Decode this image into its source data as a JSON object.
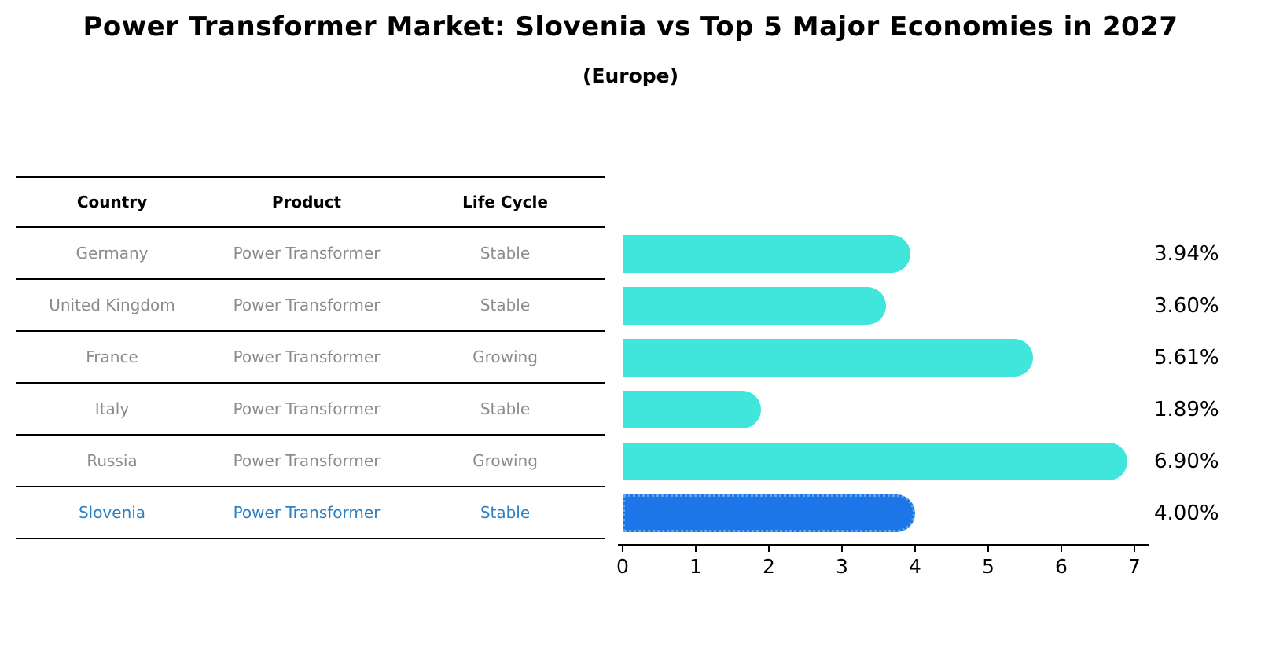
{
  "title": "Power Transformer Market: Slovenia vs Top 5 Major Economies in 2027",
  "subtitle": "(Europe)",
  "table": {
    "headers": {
      "country": "Country",
      "product": "Product",
      "life_cycle": "Life Cycle"
    },
    "rows": [
      {
        "country": "Germany",
        "product": "Power Transformer",
        "life_cycle": "Stable",
        "highlight": false
      },
      {
        "country": "United Kingdom",
        "product": "Power Transformer",
        "life_cycle": "Stable",
        "highlight": false
      },
      {
        "country": "France",
        "product": "Power Transformer",
        "life_cycle": "Growing",
        "highlight": false
      },
      {
        "country": "Italy",
        "product": "Power Transformer",
        "life_cycle": "Stable",
        "highlight": false
      },
      {
        "country": "Russia",
        "product": "Power Transformer",
        "life_cycle": "Growing",
        "highlight": false
      },
      {
        "country": "Slovenia",
        "product": "Power Transformer",
        "life_cycle": "Stable",
        "highlight": true
      }
    ]
  },
  "chart_data": {
    "type": "bar",
    "orientation": "horizontal",
    "title": "Power Transformer Market: Slovenia vs Top 5 Major Economies in 2027 (Europe)",
    "categories": [
      "Germany",
      "United Kingdom",
      "France",
      "Italy",
      "Russia",
      "Slovenia"
    ],
    "values": [
      3.94,
      3.6,
      5.61,
      1.89,
      6.9,
      4.0
    ],
    "value_labels": [
      "3.94%",
      "3.60%",
      "5.61%",
      "1.89%",
      "6.90%",
      "4.00%"
    ],
    "unit": "percent",
    "xlabel": "",
    "ylabel": "",
    "xlim": [
      0,
      7.25
    ],
    "x_ticks": [
      0,
      1,
      2,
      3,
      4,
      5,
      6,
      7
    ],
    "grid": false,
    "legend": false,
    "bar_color": "#40e5dc",
    "highlight_index": 5,
    "highlight_color": "#1d76e8",
    "highlight_border_color": "#5fa8f0",
    "highlight_border_style": "dotted"
  }
}
